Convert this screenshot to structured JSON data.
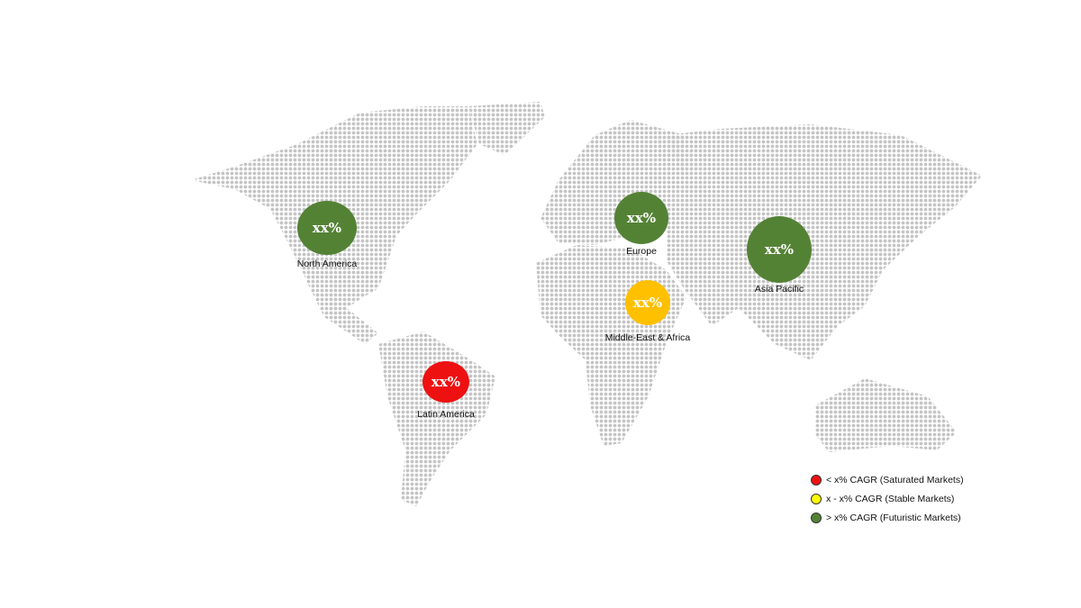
{
  "colors": {
    "saturated": "#ee1111",
    "stable": "#ffc000",
    "stable_legend": "#ffff00",
    "futuristic": "#548235",
    "map_dots": "#c4c4c4"
  },
  "regions": [
    {
      "name": "North America",
      "value": "xx%",
      "category": "futuristic"
    },
    {
      "name": "Europe",
      "value": "xx%",
      "category": "futuristic"
    },
    {
      "name": "Asia Pacific",
      "value": "xx%",
      "category": "futuristic"
    },
    {
      "name": "Middle-East & Africa",
      "value": "xx%",
      "category": "stable"
    },
    {
      "name": "Latin America",
      "value": "xx%",
      "category": "saturated"
    }
  ],
  "legend": [
    {
      "label": "< x% CAGR (Saturated Markets)",
      "category": "saturated"
    },
    {
      "label": "x - x% CAGR (Stable Markets)",
      "category": "stable"
    },
    {
      "label": "> x% CAGR (Futuristic Markets)",
      "category": "futuristic"
    }
  ]
}
